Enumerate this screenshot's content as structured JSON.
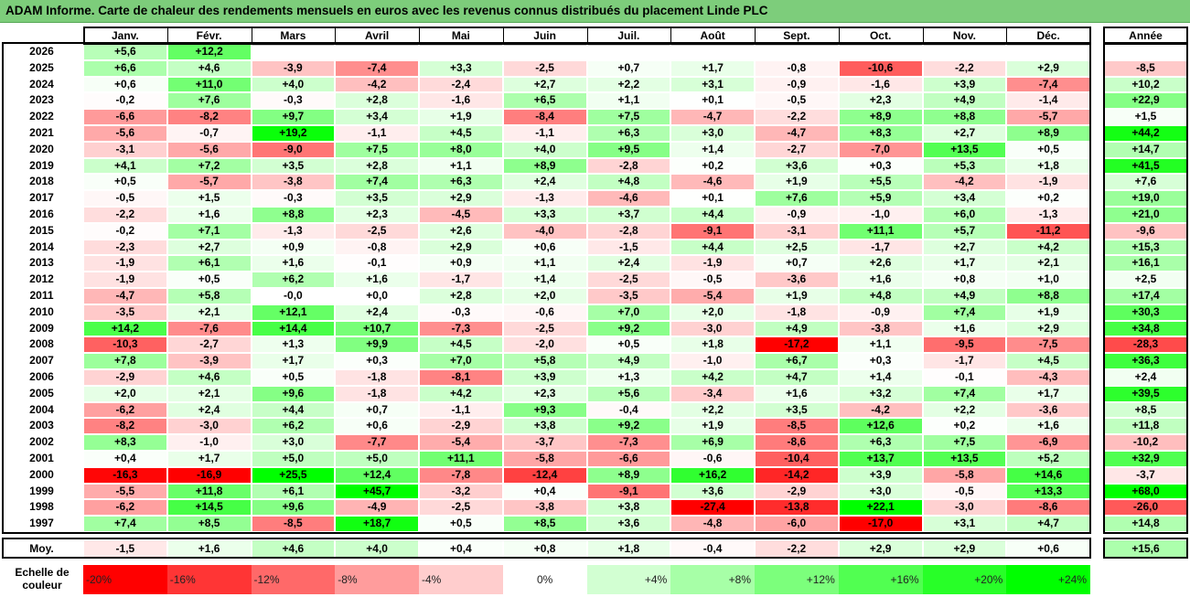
{
  "title": "ADAM Informe. Carte de chaleur des rendements mensuels en euros avec les revenus connus distribués du placement Linde PLC",
  "colors": {
    "title_bg": "#7dcd7b"
  },
  "chart_data": {
    "type": "heatmap",
    "columns": [
      "Janv.",
      "Févr.",
      "Mars",
      "Avril",
      "Mai",
      "Juin",
      "Juil.",
      "Août",
      "Sept.",
      "Oct.",
      "Nov.",
      "Déc."
    ],
    "year_column": "Année",
    "rows": [
      {
        "year": "2026",
        "values": [
          5.6,
          12.2,
          null,
          null,
          null,
          null,
          null,
          null,
          null,
          null,
          null,
          null
        ],
        "labels": [
          "+5,6",
          "+12,2",
          "",
          "",
          "",
          "",
          "",
          "",
          "",
          "",
          "",
          ""
        ],
        "annual": null,
        "annual_label": ""
      },
      {
        "year": "2025",
        "values": [
          6.6,
          4.6,
          -3.9,
          -7.4,
          3.3,
          -2.5,
          0.7,
          1.7,
          -0.8,
          -10.6,
          -2.2,
          2.9
        ],
        "labels": [
          "+6,6",
          "+4,6",
          "-3,9",
          "-7,4",
          "+3,3",
          "-2,5",
          "+0,7",
          "+1,7",
          "-0,8",
          "-10,6",
          "-2,2",
          "+2,9"
        ],
        "annual": -8.5,
        "annual_label": "-8,5"
      },
      {
        "year": "2024",
        "values": [
          0.6,
          11.0,
          4.0,
          -4.2,
          -2.4,
          2.7,
          2.2,
          3.1,
          -0.9,
          -1.6,
          3.9,
          -7.4
        ],
        "labels": [
          "+0,6",
          "+11,0",
          "+4,0",
          "-4,2",
          "-2,4",
          "+2,7",
          "+2,2",
          "+3,1",
          "-0,9",
          "-1,6",
          "+3,9",
          "-7,4"
        ],
        "annual": 10.2,
        "annual_label": "+10,2"
      },
      {
        "year": "2023",
        "values": [
          -0.2,
          7.6,
          -0.3,
          2.8,
          -1.6,
          6.5,
          1.1,
          0.1,
          -0.5,
          2.3,
          4.9,
          -1.4
        ],
        "labels": [
          "-0,2",
          "+7,6",
          "-0,3",
          "+2,8",
          "-1,6",
          "+6,5",
          "+1,1",
          "+0,1",
          "-0,5",
          "+2,3",
          "+4,9",
          "-1,4"
        ],
        "annual": 22.9,
        "annual_label": "+22,9"
      },
      {
        "year": "2022",
        "values": [
          -6.6,
          -8.2,
          9.7,
          3.4,
          1.9,
          -8.4,
          7.5,
          -4.7,
          -2.2,
          8.9,
          8.8,
          -5.7
        ],
        "labels": [
          "-6,6",
          "-8,2",
          "+9,7",
          "+3,4",
          "+1,9",
          "-8,4",
          "+7,5",
          "-4,7",
          "-2,2",
          "+8,9",
          "+8,8",
          "-5,7"
        ],
        "annual": 1.5,
        "annual_label": "+1,5"
      },
      {
        "year": "2021",
        "values": [
          -5.6,
          -0.7,
          19.2,
          -1.1,
          4.5,
          -1.1,
          6.3,
          3.0,
          -4.7,
          8.3,
          2.7,
          8.9
        ],
        "labels": [
          "-5,6",
          "-0,7",
          "+19,2",
          "-1,1",
          "+4,5",
          "-1,1",
          "+6,3",
          "+3,0",
          "-4,7",
          "+8,3",
          "+2,7",
          "+8,9"
        ],
        "annual": 44.2,
        "annual_label": "+44,2"
      },
      {
        "year": "2020",
        "values": [
          -3.1,
          -5.6,
          -9.0,
          7.5,
          8.0,
          4.0,
          9.5,
          1.4,
          -2.7,
          -7.0,
          13.5,
          0.5
        ],
        "labels": [
          "-3,1",
          "-5,6",
          "-9,0",
          "+7,5",
          "+8,0",
          "+4,0",
          "+9,5",
          "+1,4",
          "-2,7",
          "-7,0",
          "+13,5",
          "+0,5"
        ],
        "annual": 14.7,
        "annual_label": "+14,7"
      },
      {
        "year": "2019",
        "values": [
          4.1,
          7.2,
          3.5,
          2.8,
          1.1,
          8.9,
          -2.8,
          0.2,
          3.6,
          0.3,
          5.3,
          1.8
        ],
        "labels": [
          "+4,1",
          "+7,2",
          "+3,5",
          "+2,8",
          "+1,1",
          "+8,9",
          "-2,8",
          "+0,2",
          "+3,6",
          "+0,3",
          "+5,3",
          "+1,8"
        ],
        "annual": 41.5,
        "annual_label": "+41,5"
      },
      {
        "year": "2018",
        "values": [
          0.5,
          -5.7,
          -3.8,
          7.4,
          6.3,
          2.4,
          4.8,
          -4.6,
          1.9,
          5.5,
          -4.2,
          -1.9
        ],
        "labels": [
          "+0,5",
          "-5,7",
          "-3,8",
          "+7,4",
          "+6,3",
          "+2,4",
          "+4,8",
          "-4,6",
          "+1,9",
          "+5,5",
          "-4,2",
          "-1,9"
        ],
        "annual": 7.6,
        "annual_label": "+7,6"
      },
      {
        "year": "2017",
        "values": [
          -0.5,
          1.5,
          -0.3,
          3.5,
          2.9,
          -1.3,
          -4.6,
          0.1,
          7.6,
          5.9,
          3.4,
          0.2
        ],
        "labels": [
          "-0,5",
          "+1,5",
          "-0,3",
          "+3,5",
          "+2,9",
          "-1,3",
          "-4,6",
          "+0,1",
          "+7,6",
          "+5,9",
          "+3,4",
          "+0,2"
        ],
        "annual": 19.0,
        "annual_label": "+19,0"
      },
      {
        "year": "2016",
        "values": [
          -2.2,
          1.6,
          8.8,
          2.3,
          -4.5,
          3.3,
          3.7,
          4.4,
          -0.9,
          -1.0,
          6.0,
          -1.3
        ],
        "labels": [
          "-2,2",
          "+1,6",
          "+8,8",
          "+2,3",
          "-4,5",
          "+3,3",
          "+3,7",
          "+4,4",
          "-0,9",
          "-1,0",
          "+6,0",
          "-1,3"
        ],
        "annual": 21.0,
        "annual_label": "+21,0"
      },
      {
        "year": "2015",
        "values": [
          -0.2,
          7.1,
          -1.3,
          -2.5,
          2.6,
          -4.0,
          -2.8,
          -9.1,
          -3.1,
          11.1,
          5.7,
          -11.2
        ],
        "labels": [
          "-0,2",
          "+7,1",
          "-1,3",
          "-2,5",
          "+2,6",
          "-4,0",
          "-2,8",
          "-9,1",
          "-3,1",
          "+11,1",
          "+5,7",
          "-11,2"
        ],
        "annual": -9.6,
        "annual_label": "-9,6"
      },
      {
        "year": "2014",
        "values": [
          -2.3,
          2.7,
          0.9,
          -0.8,
          2.9,
          0.6,
          -1.5,
          4.4,
          2.5,
          -1.7,
          2.7,
          4.2
        ],
        "labels": [
          "-2,3",
          "+2,7",
          "+0,9",
          "-0,8",
          "+2,9",
          "+0,6",
          "-1,5",
          "+4,4",
          "+2,5",
          "-1,7",
          "+2,7",
          "+4,2"
        ],
        "annual": 15.3,
        "annual_label": "+15,3"
      },
      {
        "year": "2013",
        "values": [
          -1.9,
          6.1,
          1.6,
          -0.1,
          0.9,
          1.1,
          2.4,
          -1.9,
          0.7,
          2.6,
          1.7,
          2.1
        ],
        "labels": [
          "-1,9",
          "+6,1",
          "+1,6",
          "-0,1",
          "+0,9",
          "+1,1",
          "+2,4",
          "-1,9",
          "+0,7",
          "+2,6",
          "+1,7",
          "+2,1"
        ],
        "annual": 16.1,
        "annual_label": "+16,1"
      },
      {
        "year": "2012",
        "values": [
          -1.9,
          0.5,
          6.2,
          1.6,
          -1.7,
          1.4,
          -2.5,
          -0.5,
          -3.6,
          1.6,
          0.8,
          1.0
        ],
        "labels": [
          "-1,9",
          "+0,5",
          "+6,2",
          "+1,6",
          "-1,7",
          "+1,4",
          "-2,5",
          "-0,5",
          "-3,6",
          "+1,6",
          "+0,8",
          "+1,0"
        ],
        "annual": 2.5,
        "annual_label": "+2,5"
      },
      {
        "year": "2011",
        "values": [
          -4.7,
          5.8,
          -0.0,
          0.0,
          2.8,
          2.0,
          -3.5,
          -5.4,
          1.9,
          4.8,
          4.9,
          8.8
        ],
        "labels": [
          "-4,7",
          "+5,8",
          "-0,0",
          "+0,0",
          "+2,8",
          "+2,0",
          "-3,5",
          "-5,4",
          "+1,9",
          "+4,8",
          "+4,9",
          "+8,8"
        ],
        "annual": 17.4,
        "annual_label": "+17,4"
      },
      {
        "year": "2010",
        "values": [
          -3.5,
          2.1,
          12.1,
          2.4,
          -0.3,
          -0.6,
          7.0,
          2.0,
          -1.8,
          -0.9,
          7.4,
          1.9
        ],
        "labels": [
          "-3,5",
          "+2,1",
          "+12,1",
          "+2,4",
          "-0,3",
          "-0,6",
          "+7,0",
          "+2,0",
          "-1,8",
          "-0,9",
          "+7,4",
          "+1,9"
        ],
        "annual": 30.3,
        "annual_label": "+30,3"
      },
      {
        "year": "2009",
        "values": [
          14.2,
          -7.6,
          14.4,
          10.7,
          -7.3,
          -2.5,
          9.2,
          -3.0,
          4.9,
          -3.8,
          1.6,
          2.9
        ],
        "labels": [
          "+14,2",
          "-7,6",
          "+14,4",
          "+10,7",
          "-7,3",
          "-2,5",
          "+9,2",
          "-3,0",
          "+4,9",
          "-3,8",
          "+1,6",
          "+2,9"
        ],
        "annual": 34.8,
        "annual_label": "+34,8"
      },
      {
        "year": "2008",
        "values": [
          -10.3,
          -2.7,
          1.3,
          9.9,
          4.5,
          -2.0,
          0.5,
          1.8,
          -17.2,
          1.1,
          -9.5,
          -7.5
        ],
        "labels": [
          "-10,3",
          "-2,7",
          "+1,3",
          "+9,9",
          "+4,5",
          "-2,0",
          "+0,5",
          "+1,8",
          "-17,2",
          "+1,1",
          "-9,5",
          "-7,5"
        ],
        "annual": -28.3,
        "annual_label": "-28,3"
      },
      {
        "year": "2007",
        "values": [
          7.8,
          -3.9,
          1.7,
          0.3,
          7.0,
          5.8,
          4.9,
          -1.0,
          6.7,
          0.3,
          -1.7,
          4.5
        ],
        "labels": [
          "+7,8",
          "-3,9",
          "+1,7",
          "+0,3",
          "+7,0",
          "+5,8",
          "+4,9",
          "-1,0",
          "+6,7",
          "+0,3",
          "-1,7",
          "+4,5"
        ],
        "annual": 36.3,
        "annual_label": "+36,3"
      },
      {
        "year": "2006",
        "values": [
          -2.9,
          4.6,
          0.5,
          -1.8,
          -8.1,
          3.9,
          1.3,
          4.2,
          4.7,
          1.4,
          -0.1,
          -4.3
        ],
        "labels": [
          "-2,9",
          "+4,6",
          "+0,5",
          "-1,8",
          "-8,1",
          "+3,9",
          "+1,3",
          "+4,2",
          "+4,7",
          "+1,4",
          "-0,1",
          "-4,3"
        ],
        "annual": 2.4,
        "annual_label": "+2,4"
      },
      {
        "year": "2005",
        "values": [
          2.0,
          2.1,
          9.6,
          -1.8,
          4.2,
          2.3,
          5.6,
          -3.4,
          1.6,
          3.2,
          7.4,
          1.7
        ],
        "labels": [
          "+2,0",
          "+2,1",
          "+9,6",
          "-1,8",
          "+4,2",
          "+2,3",
          "+5,6",
          "-3,4",
          "+1,6",
          "+3,2",
          "+7,4",
          "+1,7"
        ],
        "annual": 39.5,
        "annual_label": "+39,5"
      },
      {
        "year": "2004",
        "values": [
          -6.2,
          2.4,
          4.4,
          0.7,
          -1.1,
          9.3,
          -0.4,
          2.2,
          3.5,
          -4.2,
          2.2,
          -3.6
        ],
        "labels": [
          "-6,2",
          "+2,4",
          "+4,4",
          "+0,7",
          "-1,1",
          "+9,3",
          "-0,4",
          "+2,2",
          "+3,5",
          "-4,2",
          "+2,2",
          "-3,6"
        ],
        "annual": 8.5,
        "annual_label": "+8,5"
      },
      {
        "year": "2003",
        "values": [
          -8.2,
          -3.0,
          6.2,
          0.6,
          -2.9,
          3.8,
          9.2,
          1.9,
          -8.5,
          12.6,
          0.2,
          1.6
        ],
        "labels": [
          "-8,2",
          "-3,0",
          "+6,2",
          "+0,6",
          "-2,9",
          "+3,8",
          "+9,2",
          "+1,9",
          "-8,5",
          "+12,6",
          "+0,2",
          "+1,6"
        ],
        "annual": 11.8,
        "annual_label": "+11,8"
      },
      {
        "year": "2002",
        "values": [
          8.3,
          -1.0,
          3.0,
          -7.7,
          -5.4,
          -3.7,
          -7.3,
          6.9,
          -8.6,
          6.3,
          7.5,
          -6.9
        ],
        "labels": [
          "+8,3",
          "-1,0",
          "+3,0",
          "-7,7",
          "-5,4",
          "-3,7",
          "-7,3",
          "+6,9",
          "-8,6",
          "+6,3",
          "+7,5",
          "-6,9"
        ],
        "annual": -10.2,
        "annual_label": "-10,2"
      },
      {
        "year": "2001",
        "values": [
          0.4,
          1.7,
          5.0,
          5.0,
          11.1,
          -5.8,
          -6.6,
          -0.6,
          -10.4,
          13.7,
          13.5,
          5.2
        ],
        "labels": [
          "+0,4",
          "+1,7",
          "+5,0",
          "+5,0",
          "+11,1",
          "-5,8",
          "-6,6",
          "-0,6",
          "-10,4",
          "+13,7",
          "+13,5",
          "+5,2"
        ],
        "annual": 32.9,
        "annual_label": "+32,9"
      },
      {
        "year": "2000",
        "values": [
          -16.3,
          -16.9,
          25.5,
          12.4,
          -7.8,
          -12.4,
          8.9,
          16.2,
          -14.2,
          3.9,
          -5.8,
          14.6
        ],
        "labels": [
          "-16,3",
          "-16,9",
          "+25,5",
          "+12,4",
          "-7,8",
          "-12,4",
          "+8,9",
          "+16,2",
          "-14,2",
          "+3,9",
          "-5,8",
          "+14,6"
        ],
        "annual": -3.7,
        "annual_label": "-3,7"
      },
      {
        "year": "1999",
        "values": [
          -5.5,
          11.8,
          6.1,
          45.7,
          -3.2,
          0.4,
          -9.1,
          3.6,
          -2.9,
          3.0,
          -0.5,
          13.3
        ],
        "labels": [
          "-5,5",
          "+11,8",
          "+6,1",
          "+45,7",
          "-3,2",
          "+0,4",
          "-9,1",
          "+3,6",
          "-2,9",
          "+3,0",
          "-0,5",
          "+13,3"
        ],
        "annual": 68.0,
        "annual_label": "+68,0"
      },
      {
        "year": "1998",
        "values": [
          -6.2,
          14.5,
          9.6,
          -4.9,
          -2.5,
          -3.8,
          3.8,
          -27.4,
          -13.8,
          22.1,
          -3.0,
          -8.6
        ],
        "labels": [
          "-6,2",
          "+14,5",
          "+9,6",
          "-4,9",
          "-2,5",
          "-3,8",
          "+3,8",
          "-27,4",
          "-13,8",
          "+22,1",
          "-3,0",
          "-8,6"
        ],
        "annual": -26.0,
        "annual_label": "-26,0"
      },
      {
        "year": "1997",
        "values": [
          7.4,
          8.5,
          -8.5,
          18.7,
          0.5,
          8.5,
          3.6,
          -4.8,
          -6.0,
          -17.0,
          3.1,
          4.7
        ],
        "labels": [
          "+7,4",
          "+8,5",
          "-8,5",
          "+18,7",
          "+0,5",
          "+8,5",
          "+3,6",
          "-4,8",
          "-6,0",
          "-17,0",
          "+3,1",
          "+4,7"
        ],
        "annual": 14.8,
        "annual_label": "+14,8"
      }
    ],
    "average": {
      "label": "Moy.",
      "values": [
        -1.5,
        1.6,
        4.6,
        4.0,
        0.4,
        0.8,
        1.8,
        -0.4,
        -2.2,
        2.9,
        2.9,
        0.6
      ],
      "labels": [
        "-1,5",
        "+1,6",
        "+4,6",
        "+4,0",
        "+0,4",
        "+0,8",
        "+1,8",
        "-0,4",
        "-2,2",
        "+2,9",
        "+2,9",
        "+0,6"
      ],
      "annual": 15.6,
      "annual_label": "+15,6"
    },
    "color_scale": {
      "label_line1": "Echelle de",
      "label_line2": "couleur",
      "steps": [
        {
          "value": -20,
          "label": "-20%",
          "color": "#ff0000"
        },
        {
          "value": -16,
          "label": "-16%",
          "color": "#ff3535"
        },
        {
          "value": -12,
          "label": "-12%",
          "color": "#ff6969"
        },
        {
          "value": -8,
          "label": "-8%",
          "color": "#ff9c9c"
        },
        {
          "value": -4,
          "label": "-4%",
          "color": "#ffcdcd"
        },
        {
          "value": 0,
          "label": "0%",
          "color": "#ffffff"
        },
        {
          "value": 4,
          "label": "+4%",
          "color": "#d2ffd2"
        },
        {
          "value": 8,
          "label": "+8%",
          "color": "#a7ffa7"
        },
        {
          "value": 12,
          "label": "+12%",
          "color": "#7cff7c"
        },
        {
          "value": 16,
          "label": "+16%",
          "color": "#51ff51"
        },
        {
          "value": 20,
          "label": "+20%",
          "color": "#28ff28"
        },
        {
          "value": 24,
          "label": "+24%",
          "color": "#00ff00"
        }
      ]
    },
    "annual_color_cap": 48
  }
}
